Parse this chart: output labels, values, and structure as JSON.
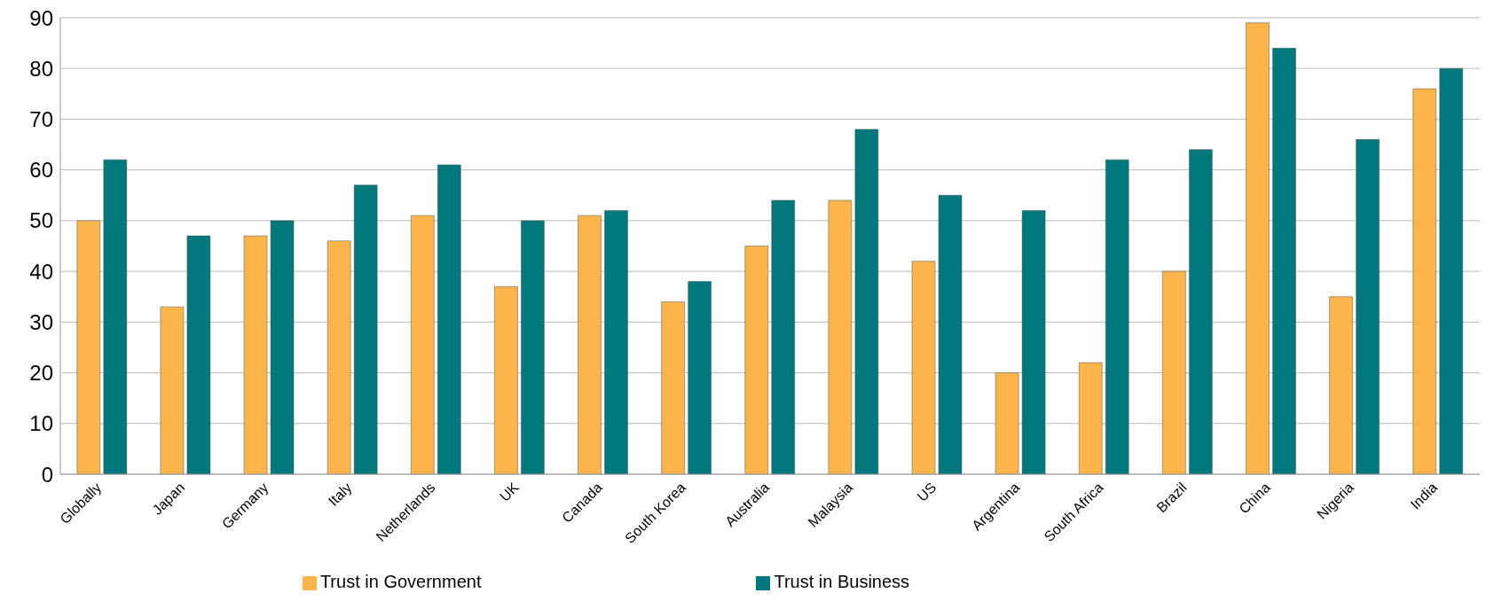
{
  "chart_data": {
    "type": "bar",
    "categories": [
      "Globally",
      "Japan",
      "Germany",
      "Italy",
      "Netherlands",
      "UK",
      "Canada",
      "South Korea",
      "Australia",
      "Malaysia",
      "US",
      "Argentina",
      "South Africa",
      "Brazil",
      "China",
      "Nigeria",
      "India"
    ],
    "series": [
      {
        "name": "Trust in Government",
        "color": "#fbb54a",
        "values": [
          50,
          33,
          47,
          46,
          51,
          37,
          51,
          34,
          45,
          54,
          42,
          20,
          22,
          40,
          89,
          35,
          76
        ]
      },
      {
        "name": "Trust in Business",
        "color": "#00787c",
        "values": [
          62,
          47,
          50,
          57,
          61,
          50,
          52,
          38,
          54,
          68,
          55,
          52,
          62,
          64,
          84,
          66,
          80
        ]
      }
    ],
    "ylim": [
      0,
      90
    ],
    "yticks": [
      0,
      10,
      20,
      30,
      40,
      50,
      60,
      70,
      80,
      90
    ],
    "grid": "y",
    "legend": "bottom"
  }
}
